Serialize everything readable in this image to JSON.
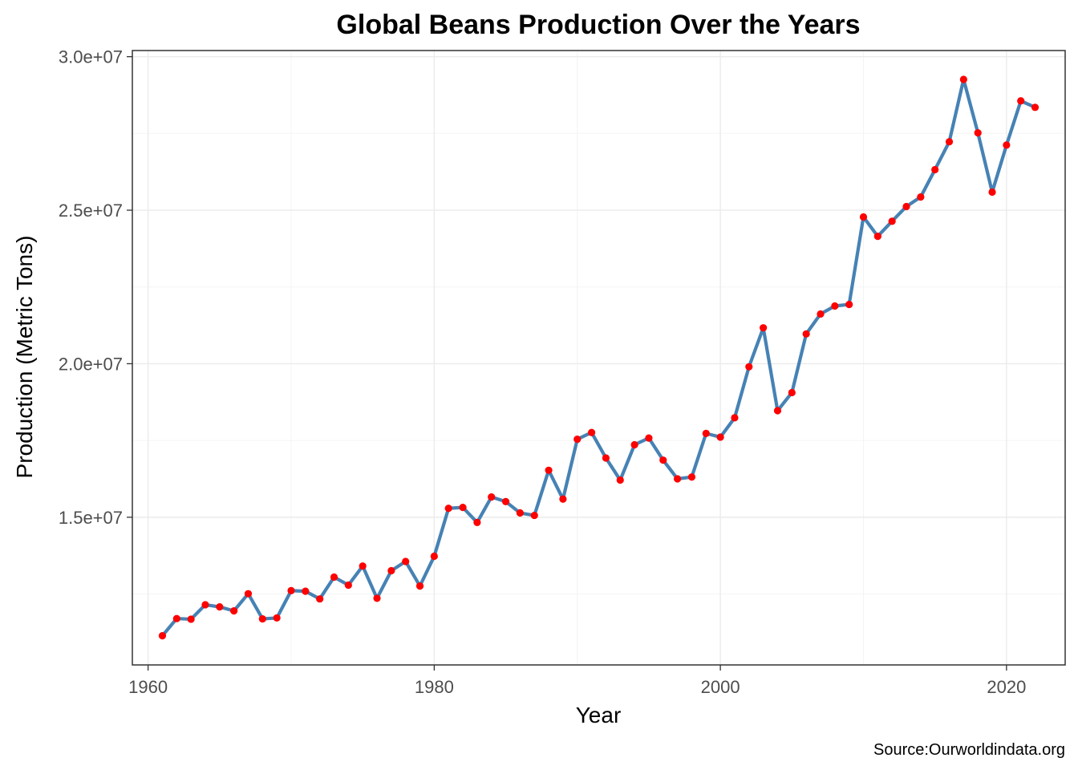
{
  "chart_data": {
    "type": "line",
    "title": "Global Beans Production Over the Years",
    "xlabel": "Year",
    "ylabel": "Production (Metric Tons)",
    "caption": "Source:Ourworldindata.org",
    "xlim": [
      1958.9,
      2024.1
    ],
    "ylim": [
      10190000,
      30200000
    ],
    "x_ticks": [
      1960,
      1980,
      2000,
      2020
    ],
    "x_tick_labels": [
      "1960",
      "1980",
      "2000",
      "2020"
    ],
    "x_minor_ticks": [
      1970,
      1990,
      2010
    ],
    "y_ticks": [
      15000000,
      20000000,
      25000000,
      30000000
    ],
    "y_tick_labels": [
      "1.5e+07",
      "2.0e+07",
      "2.5e+07",
      "3.0e+07"
    ],
    "y_minor_ticks": [
      12500000,
      17500000,
      22500000,
      27500000
    ],
    "grid": true,
    "line_color": "#4682b4",
    "point_color": "#ff0000",
    "x": [
      1961,
      1962,
      1963,
      1964,
      1965,
      1966,
      1967,
      1968,
      1969,
      1970,
      1971,
      1972,
      1973,
      1974,
      1975,
      1976,
      1977,
      1978,
      1979,
      1980,
      1981,
      1982,
      1983,
      1984,
      1985,
      1986,
      1987,
      1988,
      1989,
      1990,
      1991,
      1992,
      1993,
      1994,
      1995,
      1996,
      1997,
      1998,
      1999,
      2000,
      2001,
      2002,
      2003,
      2004,
      2005,
      2006,
      2007,
      2008,
      2009,
      2010,
      2011,
      2012,
      2013,
      2014,
      2015,
      2016,
      2017,
      2018,
      2019,
      2020,
      2021,
      2022
    ],
    "series": [
      {
        "values": [
          11140000,
          11700000,
          11680000,
          12150000,
          12080000,
          11950000,
          12510000,
          11690000,
          11720000,
          12610000,
          12590000,
          12340000,
          13050000,
          12790000,
          13410000,
          12360000,
          13260000,
          13560000,
          12760000,
          13730000,
          15290000,
          15320000,
          14830000,
          15660000,
          15510000,
          15140000,
          15060000,
          16530000,
          15590000,
          17540000,
          17760000,
          16930000,
          16210000,
          17360000,
          17580000,
          16860000,
          16250000,
          16310000,
          17730000,
          17610000,
          18240000,
          19900000,
          21170000,
          18470000,
          19060000,
          20970000,
          21620000,
          21880000,
          21930000,
          24780000,
          24150000,
          24640000,
          25120000,
          25430000,
          26320000,
          27230000,
          29260000,
          27520000,
          25590000,
          27120000,
          28560000,
          28350000
        ]
      }
    ]
  }
}
